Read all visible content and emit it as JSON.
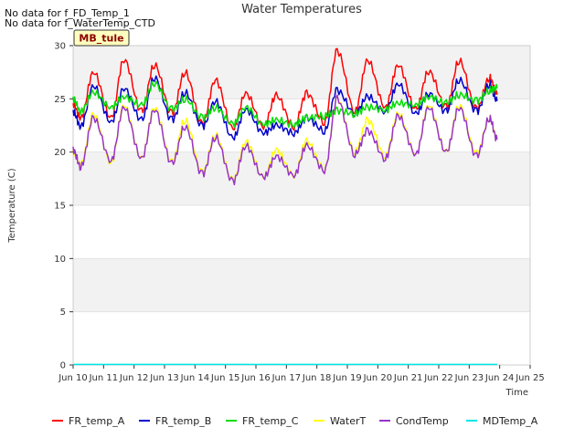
{
  "notes": [
    "No data for f_FD_Temp_1",
    "No data for f_WaterTemp_CTD"
  ],
  "site_badge": "MB_tule",
  "chart_data": {
    "type": "line",
    "title": "Water Temperatures",
    "xlabel": "Time",
    "ylabel": "Temperature (C)",
    "xlim": [
      "2024-06-10",
      "2024-06-25"
    ],
    "ylim": [
      0,
      30
    ],
    "x_ticks": [
      "2024-06-10",
      "2024-06-11",
      "2024-06-12",
      "2024-06-13",
      "2024-06-14",
      "2024-06-15",
      "2024-06-16",
      "2024-06-17",
      "2024-06-18",
      "2024-06-19",
      "2024-06-20",
      "2024-06-21",
      "2024-06-22",
      "2024-06-23",
      "2024-06-24",
      "2024-06-25"
    ],
    "x_tick_labels": [
      "Jun 10",
      "Jun 11",
      "Jun 12",
      "Jun 13",
      "Jun 14",
      "Jun 15",
      "Jun 16",
      "Jun 17",
      "Jun 18",
      "Jun 19",
      "Jun 20",
      "Jun 21",
      "Jun 22",
      "Jun 23",
      "Jun 24",
      "Jun 25"
    ],
    "y_ticks": [
      0,
      5,
      10,
      15,
      20,
      25,
      30
    ],
    "y_tick_labels": [
      "0",
      "5",
      "10",
      "15",
      "20",
      "25",
      "30"
    ],
    "grid": true,
    "background_bands": "alternating light gray",
    "legend_position": "bottom",
    "colors": {
      "FR_temp_A": "#ff0000",
      "FR_temp_B": "#0000cc",
      "FR_temp_C": "#00dd00",
      "WaterT": "#ffff00",
      "CondTemp": "#9933cc",
      "MDTemp_A": "#00e5e5"
    },
    "series": [
      {
        "name": "FR_temp_A",
        "x": [
          "2024-06-10 00:00",
          "2024-06-10 06:00",
          "2024-06-10 16:00",
          "2024-06-11 06:00",
          "2024-06-11 16:00",
          "2024-06-12 06:00",
          "2024-06-12 16:00",
          "2024-06-13 06:00",
          "2024-06-13 16:00",
          "2024-06-14 06:00",
          "2024-06-14 16:00",
          "2024-06-15 06:00",
          "2024-06-15 16:00",
          "2024-06-16 06:00",
          "2024-06-16 16:00",
          "2024-06-17 06:00",
          "2024-06-17 16:00",
          "2024-06-18 06:00",
          "2024-06-18 16:00",
          "2024-06-19 06:00",
          "2024-06-19 16:00",
          "2024-06-20 06:00",
          "2024-06-20 16:00",
          "2024-06-21 06:00",
          "2024-06-21 16:00",
          "2024-06-22 06:00",
          "2024-06-22 16:00",
          "2024-06-23 06:00",
          "2024-06-23 16:00",
          "2024-06-23 22:00"
        ],
        "values": [
          24.5,
          23.2,
          27.5,
          23.2,
          28.7,
          23.8,
          28.2,
          23.6,
          27.5,
          22.6,
          26.8,
          22.2,
          25.5,
          22.4,
          25.3,
          22.4,
          25.5,
          22.8,
          29.5,
          23.8,
          28.6,
          24.2,
          28.2,
          24.0,
          27.6,
          24.2,
          28.6,
          24.0,
          27.0,
          25.4
        ]
      },
      {
        "name": "FR_temp_B",
        "x": [
          "2024-06-10 00:00",
          "2024-06-10 06:00",
          "2024-06-10 16:00",
          "2024-06-11 06:00",
          "2024-06-11 16:00",
          "2024-06-12 06:00",
          "2024-06-12 16:00",
          "2024-06-13 06:00",
          "2024-06-13 16:00",
          "2024-06-14 06:00",
          "2024-06-14 16:00",
          "2024-06-15 06:00",
          "2024-06-15 16:00",
          "2024-06-16 06:00",
          "2024-06-16 16:00",
          "2024-06-17 06:00",
          "2024-06-17 16:00",
          "2024-06-18 06:00",
          "2024-06-18 16:00",
          "2024-06-19 06:00",
          "2024-06-19 16:00",
          "2024-06-20 06:00",
          "2024-06-20 16:00",
          "2024-06-21 06:00",
          "2024-06-21 16:00",
          "2024-06-22 06:00",
          "2024-06-22 16:00",
          "2024-06-23 06:00",
          "2024-06-23 16:00",
          "2024-06-23 22:00"
        ],
        "values": [
          23.8,
          22.4,
          26.2,
          22.8,
          26.0,
          23.0,
          27.0,
          23.0,
          25.6,
          22.4,
          24.8,
          21.3,
          24.0,
          21.8,
          22.5,
          21.8,
          23.2,
          22.0,
          25.8,
          23.6,
          25.2,
          23.8,
          26.4,
          23.6,
          25.5,
          23.8,
          26.8,
          23.8,
          26.4,
          24.8
        ]
      },
      {
        "name": "FR_temp_C",
        "x": [
          "2024-06-10 00:00",
          "2024-06-10 06:00",
          "2024-06-10 16:00",
          "2024-06-11 06:00",
          "2024-06-11 16:00",
          "2024-06-12 06:00",
          "2024-06-12 16:00",
          "2024-06-13 06:00",
          "2024-06-13 16:00",
          "2024-06-14 06:00",
          "2024-06-14 16:00",
          "2024-06-15 06:00",
          "2024-06-15 16:00",
          "2024-06-16 06:00",
          "2024-06-16 16:00",
          "2024-06-17 06:00",
          "2024-06-17 16:00",
          "2024-06-18 06:00",
          "2024-06-18 16:00",
          "2024-06-19 06:00",
          "2024-06-19 16:00",
          "2024-06-20 06:00",
          "2024-06-20 16:00",
          "2024-06-21 06:00",
          "2024-06-21 16:00",
          "2024-06-22 06:00",
          "2024-06-22 16:00",
          "2024-06-23 06:00",
          "2024-06-23 16:00",
          "2024-06-23 22:00"
        ],
        "values": [
          25.0,
          23.8,
          25.6,
          24.2,
          25.2,
          24.4,
          26.5,
          24.0,
          25.0,
          23.2,
          24.2,
          22.6,
          24.2,
          22.6,
          23.0,
          22.6,
          23.2,
          23.4,
          23.9,
          23.6,
          24.2,
          24.0,
          24.6,
          24.4,
          25.2,
          24.6,
          25.4,
          24.8,
          25.8,
          26.0
        ]
      },
      {
        "name": "WaterT",
        "x": [
          "2024-06-10 00:00",
          "2024-06-10 06:00",
          "2024-06-10 16:00",
          "2024-06-11 06:00",
          "2024-06-11 16:00",
          "2024-06-12 06:00",
          "2024-06-12 16:00",
          "2024-06-13 06:00",
          "2024-06-13 16:00",
          "2024-06-14 06:00",
          "2024-06-14 16:00",
          "2024-06-15 06:00",
          "2024-06-15 16:00",
          "2024-06-16 06:00",
          "2024-06-16 16:00",
          "2024-06-17 06:00",
          "2024-06-17 16:00",
          "2024-06-18 06:00",
          "2024-06-18 16:00",
          "2024-06-19 06:00",
          "2024-06-19 16:00",
          "2024-06-20 06:00",
          "2024-06-20 16:00",
          "2024-06-21 06:00",
          "2024-06-21 16:00",
          "2024-06-22 06:00",
          "2024-06-22 16:00",
          "2024-06-23 06:00",
          "2024-06-23 16:00",
          "2024-06-23 22:00"
        ],
        "values": [
          20.0,
          18.8,
          23.5,
          19.0,
          24.4,
          19.4,
          24.2,
          19.0,
          23.0,
          18.0,
          21.6,
          17.3,
          21.0,
          17.6,
          20.2,
          17.8,
          21.0,
          18.4,
          25.0,
          20.0,
          23.0,
          19.6,
          23.6,
          19.8,
          24.4,
          20.0,
          24.4,
          19.8,
          23.2,
          21.2
        ]
      },
      {
        "name": "CondTemp",
        "x": [
          "2024-06-10 00:00",
          "2024-06-10 06:00",
          "2024-06-10 16:00",
          "2024-06-11 06:00",
          "2024-06-11 16:00",
          "2024-06-12 06:00",
          "2024-06-12 16:00",
          "2024-06-13 06:00",
          "2024-06-13 16:00",
          "2024-06-14 06:00",
          "2024-06-14 16:00",
          "2024-06-15 06:00",
          "2024-06-15 16:00",
          "2024-06-16 06:00",
          "2024-06-16 16:00",
          "2024-06-17 06:00",
          "2024-06-17 16:00",
          "2024-06-18 06:00",
          "2024-06-18 16:00",
          "2024-06-19 06:00",
          "2024-06-19 16:00",
          "2024-06-20 06:00",
          "2024-06-20 16:00",
          "2024-06-21 06:00",
          "2024-06-21 16:00",
          "2024-06-22 06:00",
          "2024-06-22 16:00",
          "2024-06-23 06:00",
          "2024-06-23 16:00",
          "2024-06-23 22:00"
        ],
        "values": [
          20.2,
          18.6,
          23.2,
          19.2,
          24.2,
          19.4,
          24.0,
          18.9,
          22.4,
          17.9,
          21.4,
          17.2,
          20.6,
          17.6,
          19.6,
          17.8,
          20.6,
          18.3,
          25.0,
          19.8,
          22.0,
          19.4,
          23.4,
          19.8,
          24.2,
          20.0,
          24.2,
          19.6,
          23.2,
          21.2
        ]
      },
      {
        "name": "MDTemp_A",
        "x": [
          "2024-06-10 00:00",
          "2024-06-23 22:00"
        ],
        "values": [
          0.05,
          0.05
        ]
      }
    ]
  }
}
